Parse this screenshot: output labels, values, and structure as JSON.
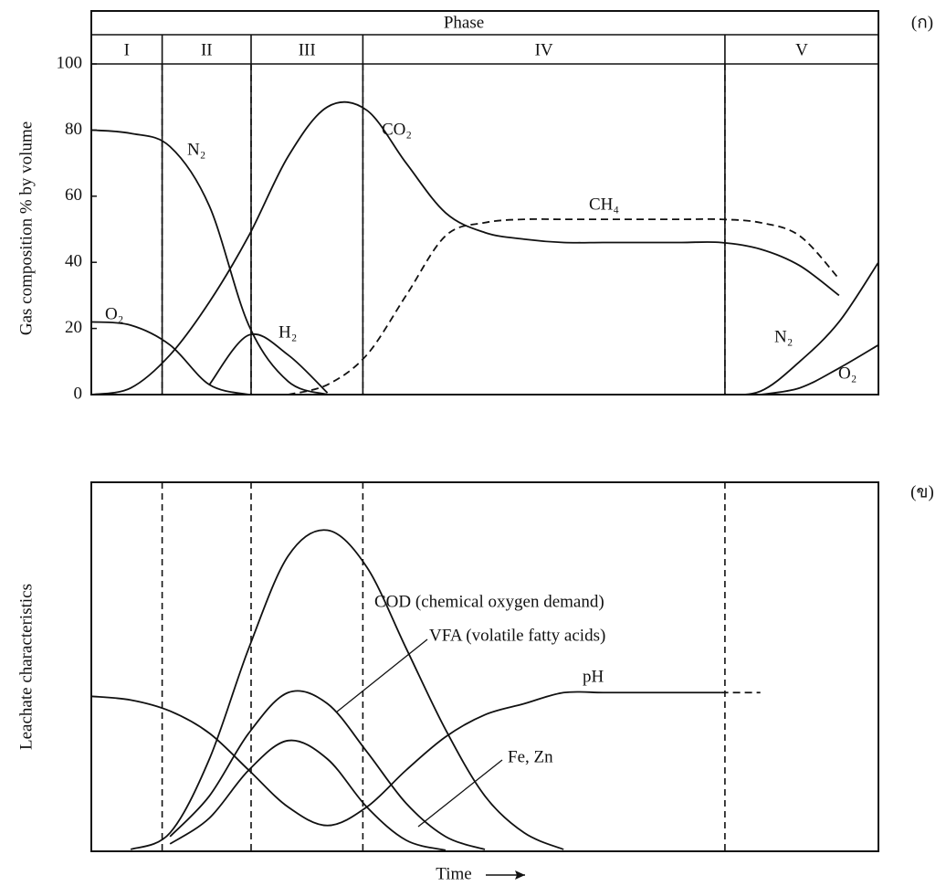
{
  "chart_data": [
    {
      "type": "line",
      "annotation": "(ก)",
      "ylabel": "Gas composition % by volume",
      "xlim": [
        0,
        100
      ],
      "ylim": [
        0,
        100
      ],
      "yticks": [
        0,
        20,
        40,
        60,
        80,
        100
      ],
      "x": [
        0,
        5,
        10,
        15,
        20,
        25,
        30,
        35,
        40,
        45,
        50,
        55,
        60,
        65,
        70,
        75,
        80,
        85,
        90,
        95,
        100
      ],
      "phases": {
        "title": "Phase",
        "labels": [
          "I",
          "II",
          "III",
          "IV",
          "V"
        ],
        "boundaries": [
          9,
          20.3,
          34.5,
          80.5
        ]
      },
      "series": [
        {
          "name": "N₂",
          "color": "#111",
          "values": [
            80,
            79,
            75,
            57,
            21,
            4,
            0,
            null,
            null,
            null,
            null,
            null,
            null,
            null,
            null,
            null,
            0,
            1,
            10,
            22,
            40
          ]
        },
        {
          "name": "O₂",
          "color": "#111",
          "values": [
            22,
            21,
            15,
            3,
            0,
            null,
            null,
            null,
            null,
            null,
            null,
            null,
            null,
            null,
            null,
            null,
            null,
            0,
            2,
            8,
            15
          ]
        },
        {
          "name": "CO₂",
          "color": "#111",
          "values": [
            0,
            2,
            12,
            28,
            48,
            72,
            87,
            86,
            70,
            55,
            49,
            47,
            46,
            46,
            46,
            46,
            46,
            44,
            39,
            30,
            null
          ]
        },
        {
          "name": "H₂",
          "color": "#111",
          "values": [
            null,
            null,
            null,
            3,
            18,
            12,
            0.5,
            null,
            null,
            null,
            null,
            null,
            null,
            null,
            null,
            null,
            null,
            null,
            null,
            null,
            null
          ]
        },
        {
          "name": "CH₄",
          "color": "#111",
          "dashed": true,
          "values": [
            null,
            null,
            null,
            null,
            null,
            0,
            3,
            12,
            30,
            48,
            52,
            53,
            53,
            53,
            53,
            53,
            53,
            52,
            48,
            35,
            null
          ]
        }
      ]
    },
    {
      "type": "line",
      "annotation": "(ข)",
      "ylabel": "Leachate characteristics",
      "xlabel": "Time",
      "xlim": [
        0,
        100
      ],
      "ylim": [
        0,
        100
      ],
      "x": [
        0,
        5,
        10,
        15,
        20,
        25,
        30,
        35,
        40,
        45,
        50,
        55,
        60,
        65,
        70,
        75,
        80,
        85,
        90,
        95,
        100
      ],
      "series": [
        {
          "name": "COD (chemical oxygen demand)",
          "color": "#111",
          "values": [
            null,
            0.5,
            5,
            25,
            55,
            80,
            87,
            77,
            55,
            33,
            15,
            5,
            0.5,
            null,
            null,
            null,
            null,
            null,
            null,
            null,
            null
          ]
        },
        {
          "name": "VFA (volatile fatty acids)",
          "color": "#111",
          "values": [
            null,
            null,
            4,
            15,
            32,
            43,
            40,
            27,
            13,
            4,
            0.5,
            null,
            null,
            null,
            null,
            null,
            null,
            null,
            null,
            null,
            null
          ]
        },
        {
          "name": "pH",
          "color": "#111",
          "dash_after": 80,
          "values": [
            42,
            41,
            38,
            32,
            22,
            12,
            7,
            12,
            22,
            31,
            37,
            40,
            43,
            43,
            43,
            43,
            43,
            43,
            null,
            null,
            null
          ]
        },
        {
          "name": "Fe, Zn",
          "color": "#111",
          "values": [
            null,
            null,
            2,
            9,
            22,
            30,
            25,
            12,
            3,
            0.3,
            null,
            null,
            null,
            null,
            null,
            null,
            null,
            null,
            null,
            null,
            null
          ]
        }
      ]
    }
  ]
}
